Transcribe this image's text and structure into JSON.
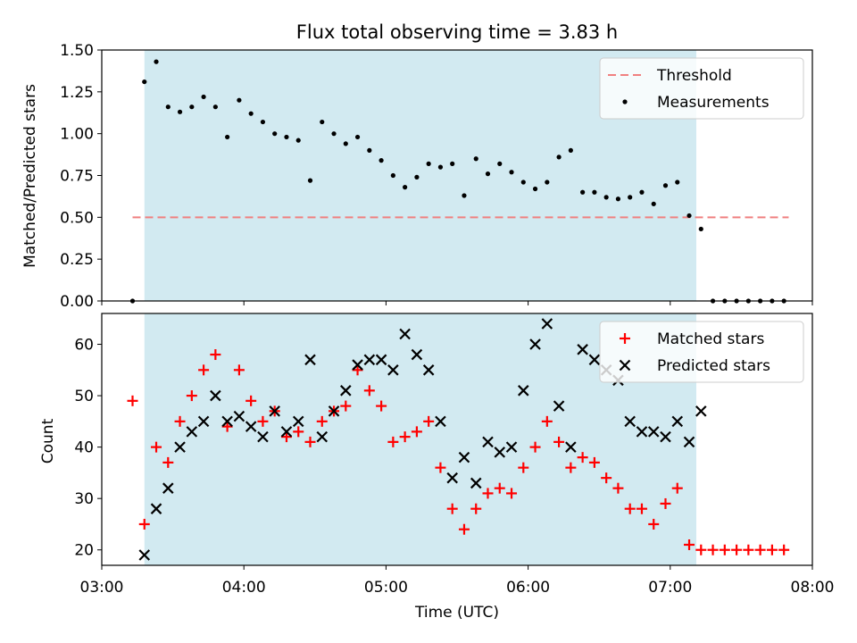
{
  "chart_data": [
    {
      "type": "scatter",
      "title": "Flux total observing time = 3.83 h",
      "ylabel": "Matched/Predicted stars",
      "ylim": [
        0,
        1.5
      ],
      "yticks": [
        "0.00",
        "0.25",
        "0.50",
        "0.75",
        "1.00",
        "1.25",
        "1.50"
      ],
      "xlim": [
        "03:00",
        "08:00"
      ],
      "observing_window": [
        "03:18",
        "07:11"
      ],
      "threshold": {
        "name": "Threshold",
        "value": 0.5,
        "range": [
          "03:13",
          "07:50"
        ],
        "color": "#f08080"
      },
      "legend_position": "upper right",
      "series": [
        {
          "name": "Measurements",
          "color": "#000000",
          "points": [
            [
              "03:13",
              0.0
            ],
            [
              "03:18",
              1.31
            ],
            [
              "03:23",
              1.43
            ],
            [
              "03:28",
              1.16
            ],
            [
              "03:33",
              1.13
            ],
            [
              "03:38",
              1.16
            ],
            [
              "03:43",
              1.22
            ],
            [
              "03:48",
              1.16
            ],
            [
              "03:53",
              0.98
            ],
            [
              "03:58",
              1.2
            ],
            [
              "04:03",
              1.12
            ],
            [
              "04:08",
              1.07
            ],
            [
              "04:13",
              1.0
            ],
            [
              "04:18",
              0.98
            ],
            [
              "04:23",
              0.96
            ],
            [
              "04:28",
              0.72
            ],
            [
              "04:33",
              1.07
            ],
            [
              "04:38",
              1.0
            ],
            [
              "04:43",
              0.94
            ],
            [
              "04:48",
              0.98
            ],
            [
              "04:53",
              0.9
            ],
            [
              "04:58",
              0.84
            ],
            [
              "05:03",
              0.75
            ],
            [
              "05:08",
              0.68
            ],
            [
              "05:13",
              0.74
            ],
            [
              "05:18",
              0.82
            ],
            [
              "05:23",
              0.8
            ],
            [
              "05:28",
              0.82
            ],
            [
              "05:33",
              0.63
            ],
            [
              "05:38",
              0.85
            ],
            [
              "05:43",
              0.76
            ],
            [
              "05:48",
              0.82
            ],
            [
              "05:53",
              0.77
            ],
            [
              "05:58",
              0.71
            ],
            [
              "06:03",
              0.67
            ],
            [
              "06:08",
              0.71
            ],
            [
              "06:13",
              0.86
            ],
            [
              "06:18",
              0.9
            ],
            [
              "06:23",
              0.65
            ],
            [
              "06:28",
              0.65
            ],
            [
              "06:33",
              0.62
            ],
            [
              "06:38",
              0.61
            ],
            [
              "06:43",
              0.62
            ],
            [
              "06:48",
              0.65
            ],
            [
              "06:53",
              0.58
            ],
            [
              "06:58",
              0.69
            ],
            [
              "07:03",
              0.71
            ],
            [
              "07:08",
              0.51
            ],
            [
              "07:13",
              0.43
            ],
            [
              "07:18",
              0.0
            ],
            [
              "07:23",
              0.0
            ],
            [
              "07:28",
              0.0
            ],
            [
              "07:33",
              0.0
            ],
            [
              "07:38",
              0.0
            ],
            [
              "07:43",
              0.0
            ],
            [
              "07:48",
              0.0
            ]
          ]
        }
      ]
    },
    {
      "type": "scatter",
      "ylabel": "Count",
      "xlabel": "Time (UTC)",
      "ylim": [
        17,
        66
      ],
      "yticks": [
        "20",
        "30",
        "40",
        "50",
        "60"
      ],
      "xlim": [
        "03:00",
        "08:00"
      ],
      "xticks": [
        "03:00",
        "04:00",
        "05:00",
        "06:00",
        "07:00",
        "08:00"
      ],
      "observing_window": [
        "03:18",
        "07:11"
      ],
      "legend_position": "upper right",
      "series": [
        {
          "name": "Matched stars",
          "color": "#ff0000",
          "marker": "plus",
          "points": [
            [
              "03:13",
              49
            ],
            [
              "03:18",
              25
            ],
            [
              "03:23",
              40
            ],
            [
              "03:28",
              37
            ],
            [
              "03:33",
              45
            ],
            [
              "03:38",
              50
            ],
            [
              "03:43",
              55
            ],
            [
              "03:48",
              58
            ],
            [
              "03:53",
              44
            ],
            [
              "03:58",
              55
            ],
            [
              "04:03",
              49
            ],
            [
              "04:08",
              45
            ],
            [
              "04:13",
              47
            ],
            [
              "04:18",
              42
            ],
            [
              "04:23",
              43
            ],
            [
              "04:28",
              41
            ],
            [
              "04:33",
              45
            ],
            [
              "04:38",
              47
            ],
            [
              "04:43",
              48
            ],
            [
              "04:48",
              55
            ],
            [
              "04:53",
              51
            ],
            [
              "04:58",
              48
            ],
            [
              "05:03",
              41
            ],
            [
              "05:08",
              42
            ],
            [
              "05:13",
              43
            ],
            [
              "05:18",
              45
            ],
            [
              "05:23",
              36
            ],
            [
              "05:28",
              28
            ],
            [
              "05:33",
              24
            ],
            [
              "05:38",
              28
            ],
            [
              "05:43",
              31
            ],
            [
              "05:48",
              32
            ],
            [
              "05:53",
              31
            ],
            [
              "05:58",
              36
            ],
            [
              "06:03",
              40
            ],
            [
              "06:08",
              45
            ],
            [
              "06:13",
              41
            ],
            [
              "06:18",
              36
            ],
            [
              "06:23",
              38
            ],
            [
              "06:28",
              37
            ],
            [
              "06:33",
              34
            ],
            [
              "06:38",
              32
            ],
            [
              "06:43",
              28
            ],
            [
              "06:48",
              28
            ],
            [
              "06:53",
              25
            ],
            [
              "06:58",
              29
            ],
            [
              "07:03",
              32
            ],
            [
              "07:08",
              21
            ],
            [
              "07:13",
              20
            ],
            [
              "07:18",
              20
            ],
            [
              "07:23",
              20
            ],
            [
              "07:28",
              20
            ],
            [
              "07:33",
              20
            ],
            [
              "07:38",
              20
            ],
            [
              "07:43",
              20
            ],
            [
              "07:48",
              20
            ]
          ]
        },
        {
          "name": "Predicted stars",
          "color": "#000000",
          "marker": "x",
          "points": [
            [
              "03:18",
              19
            ],
            [
              "03:23",
              28
            ],
            [
              "03:28",
              32
            ],
            [
              "03:33",
              40
            ],
            [
              "03:38",
              43
            ],
            [
              "03:43",
              45
            ],
            [
              "03:48",
              50
            ],
            [
              "03:53",
              45
            ],
            [
              "03:58",
              46
            ],
            [
              "04:03",
              44
            ],
            [
              "04:08",
              42
            ],
            [
              "04:13",
              47
            ],
            [
              "04:18",
              43
            ],
            [
              "04:23",
              45
            ],
            [
              "04:28",
              57
            ],
            [
              "04:33",
              42
            ],
            [
              "04:38",
              47
            ],
            [
              "04:43",
              51
            ],
            [
              "04:48",
              56
            ],
            [
              "04:53",
              57
            ],
            [
              "04:58",
              57
            ],
            [
              "05:03",
              55
            ],
            [
              "05:08",
              62
            ],
            [
              "05:13",
              58
            ],
            [
              "05:18",
              55
            ],
            [
              "05:23",
              45
            ],
            [
              "05:28",
              34
            ],
            [
              "05:33",
              38
            ],
            [
              "05:38",
              33
            ],
            [
              "05:43",
              41
            ],
            [
              "05:48",
              39
            ],
            [
              "05:53",
              40
            ],
            [
              "05:58",
              51
            ],
            [
              "06:03",
              60
            ],
            [
              "06:08",
              64
            ],
            [
              "06:13",
              48
            ],
            [
              "06:18",
              40
            ],
            [
              "06:23",
              59
            ],
            [
              "06:28",
              57
            ],
            [
              "06:33",
              55
            ],
            [
              "06:38",
              53
            ],
            [
              "06:43",
              45
            ],
            [
              "06:48",
              43
            ],
            [
              "06:53",
              43
            ],
            [
              "06:58",
              42
            ],
            [
              "07:03",
              45
            ],
            [
              "07:08",
              41
            ],
            [
              "07:13",
              47
            ]
          ]
        }
      ]
    }
  ]
}
